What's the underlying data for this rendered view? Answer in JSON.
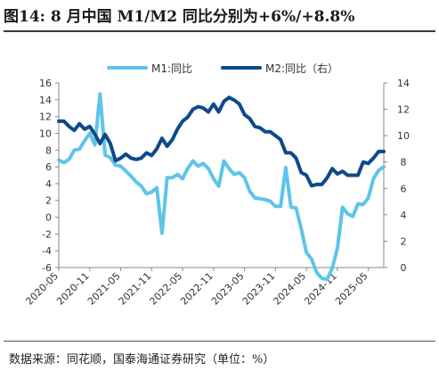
{
  "figure": {
    "title": "图14:  8 月中国 M1/M2 同比分别为+6%/+8.8%",
    "source": "数据来源：同花顺，国泰海通证券研究（单位：%）"
  },
  "chart_data": {
    "type": "line",
    "x_tick_labels": [
      "2020-05",
      "2020-11",
      "2021-05",
      "2021-11",
      "2022-05",
      "2022-11",
      "2023-05",
      "2023-11",
      "2024-05",
      "2024-11",
      "2025-05"
    ],
    "x_start": "2020-05",
    "x_end": "2025-08",
    "y_left": {
      "range": [
        -6,
        16
      ],
      "ticks": [
        -6,
        -4,
        -2,
        0,
        2,
        4,
        6,
        8,
        10,
        12,
        14,
        16
      ]
    },
    "y_right": {
      "range": [
        0,
        14
      ],
      "ticks": [
        0,
        2,
        4,
        6,
        8,
        10,
        12,
        14
      ]
    },
    "legend_position": "top",
    "grid": false,
    "series": [
      {
        "name": "M1:同比",
        "axis": "left",
        "color": "#5ec4ea",
        "x": [
          "2020-05",
          "2020-06",
          "2020-07",
          "2020-08",
          "2020-09",
          "2020-10",
          "2020-11",
          "2020-12",
          "2021-01",
          "2021-02",
          "2021-03",
          "2021-04",
          "2021-05",
          "2021-06",
          "2021-07",
          "2021-08",
          "2021-09",
          "2021-10",
          "2021-11",
          "2021-12",
          "2022-01",
          "2022-02",
          "2022-03",
          "2022-04",
          "2022-05",
          "2022-06",
          "2022-07",
          "2022-08",
          "2022-09",
          "2022-10",
          "2022-11",
          "2022-12",
          "2023-01",
          "2023-02",
          "2023-03",
          "2023-04",
          "2023-05",
          "2023-06",
          "2023-07",
          "2023-08",
          "2023-09",
          "2023-10",
          "2023-11",
          "2023-12",
          "2024-01",
          "2024-02",
          "2024-03",
          "2024-04",
          "2024-05",
          "2024-06",
          "2024-07",
          "2024-08",
          "2024-09",
          "2024-10",
          "2024-11",
          "2024-12",
          "2025-01",
          "2025-02",
          "2025-03",
          "2025-04",
          "2025-05",
          "2025-06",
          "2025-07",
          "2025-08"
        ],
        "values": [
          6.8,
          6.5,
          6.9,
          8.0,
          8.1,
          9.1,
          10.0,
          8.6,
          14.7,
          7.4,
          7.1,
          6.2,
          6.1,
          5.5,
          4.9,
          4.2,
          3.7,
          2.8,
          3.0,
          3.5,
          -1.9,
          4.7,
          4.7,
          5.1,
          4.6,
          5.8,
          6.7,
          6.1,
          6.4,
          5.8,
          4.6,
          3.7,
          6.7,
          5.8,
          5.1,
          5.3,
          4.7,
          3.1,
          2.3,
          2.2,
          2.1,
          1.9,
          1.3,
          1.3,
          5.9,
          1.2,
          1.1,
          -1.4,
          -4.2,
          -5.0,
          -6.6,
          -7.3,
          -7.4,
          -6.1,
          -3.7,
          1.2,
          0.4,
          0.1,
          1.6,
          1.5,
          2.3,
          4.6,
          5.6,
          6.0
        ]
      },
      {
        "name": "M2:同比（右）",
        "axis": "right",
        "color": "#0d4a8a",
        "x": [
          "2020-05",
          "2020-06",
          "2020-07",
          "2020-08",
          "2020-09",
          "2020-10",
          "2020-11",
          "2020-12",
          "2021-01",
          "2021-02",
          "2021-03",
          "2021-04",
          "2021-05",
          "2021-06",
          "2021-07",
          "2021-08",
          "2021-09",
          "2021-10",
          "2021-11",
          "2021-12",
          "2022-01",
          "2022-02",
          "2022-03",
          "2022-04",
          "2022-05",
          "2022-06",
          "2022-07",
          "2022-08",
          "2022-09",
          "2022-10",
          "2022-11",
          "2022-12",
          "2023-01",
          "2023-02",
          "2023-03",
          "2023-04",
          "2023-05",
          "2023-06",
          "2023-07",
          "2023-08",
          "2023-09",
          "2023-10",
          "2023-11",
          "2023-12",
          "2024-01",
          "2024-02",
          "2024-03",
          "2024-04",
          "2024-05",
          "2024-06",
          "2024-07",
          "2024-08",
          "2024-09",
          "2024-10",
          "2024-11",
          "2024-12",
          "2025-01",
          "2025-02",
          "2025-03",
          "2025-04",
          "2025-05",
          "2025-06",
          "2025-07",
          "2025-08"
        ],
        "values": [
          11.1,
          11.1,
          10.7,
          10.4,
          10.9,
          10.5,
          10.7,
          10.1,
          9.4,
          10.1,
          9.4,
          8.1,
          8.3,
          8.6,
          8.3,
          8.2,
          8.3,
          8.7,
          8.5,
          9.0,
          9.8,
          9.2,
          9.7,
          10.5,
          11.1,
          11.4,
          12.0,
          12.2,
          12.1,
          11.8,
          12.4,
          11.8,
          12.6,
          12.9,
          12.7,
          12.4,
          11.6,
          11.3,
          10.7,
          10.6,
          10.3,
          10.3,
          10.0,
          9.7,
          8.7,
          8.7,
          8.3,
          7.2,
          7.0,
          6.2,
          6.3,
          6.3,
          6.8,
          7.5,
          7.1,
          7.3,
          7.0,
          7.0,
          7.0,
          8.0,
          7.9,
          8.3,
          8.8,
          8.8
        ]
      }
    ]
  }
}
